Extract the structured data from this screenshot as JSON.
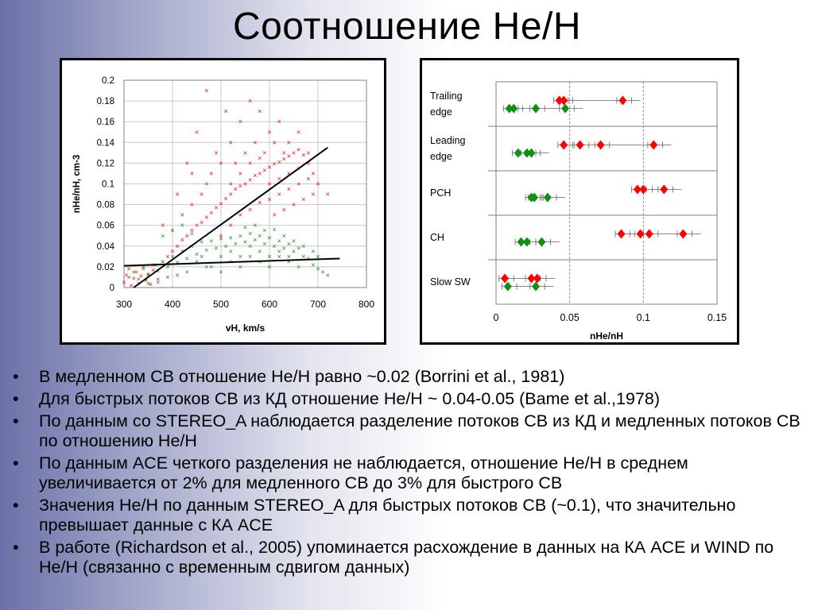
{
  "slide": {
    "title": "Соотношение He/H",
    "bullet_glyph": "•",
    "bullets": [
      "В медленном СВ отношение He/H равно ~0.02 (Borrini et al., 1981)",
      "Для быстрых потоков СВ из КД отношение He/H ~ 0.04-0.05 (Bame et al.,1978)",
      "По данным со STEREO_A  наблюдается разделение потоков СВ из КД  и медленных потоков СВ по отношению He/H",
      "По данным ACE четкого разделения не наблюдается, отношение He/H в среднем увеличивается от 2% для медленного СВ до 3% для быстрого СВ",
      "Значения He/H по данным STEREO_A для быстрых потоков СВ  (~0.1), что значительно превышает данные с КА ACE",
      "В работе (Richardson et al., 2005) упоминается расхождение в данных  на КА ACE  и WIND по He/H (связанно с временным сдвигом данных)"
    ]
  },
  "colors": {
    "red": "#ff0000",
    "green": "#109010",
    "line": "#000000"
  },
  "chart_data": [
    {
      "type": "scatter",
      "xlabel": "vH, km/s",
      "ylabel": "nHe/nH, cm-3",
      "xlim": [
        300,
        800
      ],
      "ylim": [
        0,
        0.2
      ],
      "xticks": [
        "300",
        "400",
        "500",
        "600",
        "700",
        "800"
      ],
      "yticks": [
        "0",
        "0.02",
        "0.04",
        "0.06",
        "0.08",
        "0.1",
        "0.12",
        "0.14",
        "0.16",
        "0.18",
        "0.2"
      ],
      "marker": "×",
      "series": [
        {
          "color": "red",
          "points": [
            [
              300,
              0.005
            ],
            [
              305,
              0.012
            ],
            [
              310,
              0.018
            ],
            [
              315,
              0.002
            ],
            [
              320,
              0.009
            ],
            [
              325,
              0.015
            ],
            [
              330,
              0.004
            ],
            [
              335,
              0.011
            ],
            [
              340,
              0.02
            ],
            [
              345,
              0.007
            ],
            [
              350,
              0.013
            ],
            [
              355,
              0.003
            ],
            [
              360,
              0.017
            ],
            [
              365,
              0.022
            ],
            [
              370,
              0.008
            ],
            [
              380,
              0.025
            ],
            [
              390,
              0.03
            ],
            [
              400,
              0.035
            ],
            [
              410,
              0.04
            ],
            [
              420,
              0.046
            ],
            [
              430,
              0.05
            ],
            [
              440,
              0.055
            ],
            [
              450,
              0.06
            ],
            [
              460,
              0.063
            ],
            [
              470,
              0.068
            ],
            [
              480,
              0.072
            ],
            [
              490,
              0.077
            ],
            [
              500,
              0.081
            ],
            [
              510,
              0.086
            ],
            [
              520,
              0.09
            ],
            [
              530,
              0.095
            ],
            [
              540,
              0.098
            ],
            [
              550,
              0.1
            ],
            [
              560,
              0.104
            ],
            [
              570,
              0.108
            ],
            [
              580,
              0.11
            ],
            [
              590,
              0.113
            ],
            [
              600,
              0.116
            ],
            [
              610,
              0.119
            ],
            [
              620,
              0.121
            ],
            [
              630,
              0.124
            ],
            [
              640,
              0.127
            ],
            [
              650,
              0.13
            ],
            [
              660,
              0.133
            ],
            [
              670,
              0.128
            ],
            [
              680,
              0.12
            ],
            [
              690,
              0.11
            ],
            [
              430,
              0.12
            ],
            [
              450,
              0.15
            ],
            [
              470,
              0.19
            ],
            [
              520,
              0.14
            ],
            [
              540,
              0.16
            ],
            [
              560,
              0.18
            ],
            [
              580,
              0.17
            ],
            [
              600,
              0.15
            ],
            [
              620,
              0.16
            ],
            [
              640,
              0.14
            ],
            [
              660,
              0.15
            ],
            [
              680,
              0.13
            ],
            [
              700,
              0.1
            ],
            [
              720,
              0.09
            ],
            [
              500,
              0.05
            ],
            [
              520,
              0.06
            ],
            [
              540,
              0.07
            ],
            [
              560,
              0.075
            ],
            [
              580,
              0.082
            ],
            [
              600,
              0.085
            ],
            [
              620,
              0.09
            ],
            [
              640,
              0.095
            ],
            [
              660,
              0.1
            ],
            [
              680,
              0.105
            ],
            [
              460,
              0.09
            ],
            [
              480,
              0.11
            ],
            [
              500,
              0.12
            ],
            [
              420,
              0.07
            ],
            [
              440,
              0.08
            ],
            [
              610,
              0.07
            ],
            [
              630,
              0.075
            ],
            [
              650,
              0.08
            ],
            [
              670,
              0.085
            ],
            [
              690,
              0.09
            ],
            [
              550,
              0.13
            ],
            [
              570,
              0.14
            ],
            [
              590,
              0.13
            ],
            [
              610,
              0.14
            ],
            [
              630,
              0.13
            ],
            [
              520,
              0.1
            ],
            [
              540,
              0.11
            ],
            [
              560,
              0.12
            ],
            [
              580,
              0.125
            ],
            [
              600,
              0.1
            ],
            [
              620,
              0.105
            ],
            [
              640,
              0.11
            ],
            [
              660,
              0.115
            ],
            [
              380,
              0.06
            ],
            [
              400,
              0.055
            ],
            [
              410,
              0.09
            ],
            [
              440,
              0.11
            ],
            [
              470,
              0.1
            ],
            [
              490,
              0.13
            ],
            [
              510,
              0.17
            ],
            [
              530,
              0.12
            ]
          ]
        },
        {
          "color": "green",
          "points": [
            [
              310,
              0.01
            ],
            [
              320,
              0.015
            ],
            [
              330,
              0.008
            ],
            [
              340,
              0.018
            ],
            [
              350,
              0.012
            ],
            [
              360,
              0.022
            ],
            [
              370,
              0.016
            ],
            [
              380,
              0.025
            ],
            [
              390,
              0.02
            ],
            [
              400,
              0.03
            ],
            [
              410,
              0.024
            ],
            [
              420,
              0.035
            ],
            [
              430,
              0.028
            ],
            [
              440,
              0.04
            ],
            [
              450,
              0.032
            ],
            [
              460,
              0.044
            ],
            [
              470,
              0.036
            ],
            [
              480,
              0.045
            ],
            [
              490,
              0.038
            ],
            [
              500,
              0.047
            ],
            [
              510,
              0.04
            ],
            [
              520,
              0.048
            ],
            [
              530,
              0.042
            ],
            [
              540,
              0.05
            ],
            [
              550,
              0.044
            ],
            [
              560,
              0.052
            ],
            [
              570,
              0.046
            ],
            [
              580,
              0.05
            ],
            [
              590,
              0.042
            ],
            [
              600,
              0.048
            ],
            [
              610,
              0.04
            ],
            [
              620,
              0.045
            ],
            [
              630,
              0.038
            ],
            [
              640,
              0.042
            ],
            [
              650,
              0.035
            ],
            [
              660,
              0.038
            ],
            [
              670,
              0.03
            ],
            [
              680,
              0.028
            ],
            [
              690,
              0.022
            ],
            [
              700,
              0.018
            ],
            [
              710,
              0.015
            ],
            [
              720,
              0.012
            ],
            [
              380,
              0.05
            ],
            [
              400,
              0.055
            ],
            [
              420,
              0.06
            ],
            [
              440,
              0.052
            ],
            [
              460,
              0.03
            ],
            [
              480,
              0.02
            ],
            [
              500,
              0.015
            ],
            [
              520,
              0.025
            ],
            [
              540,
              0.02
            ],
            [
              560,
              0.03
            ],
            [
              580,
              0.025
            ],
            [
              600,
              0.02
            ],
            [
              620,
              0.03
            ],
            [
              640,
              0.025
            ],
            [
              660,
              0.02
            ],
            [
              500,
              0.03
            ],
            [
              520,
              0.035
            ],
            [
              540,
              0.03
            ],
            [
              560,
              0.04
            ],
            [
              580,
              0.035
            ],
            [
              600,
              0.03
            ],
            [
              620,
              0.035
            ],
            [
              640,
              0.03
            ],
            [
              450,
              0.025
            ],
            [
              470,
              0.02
            ],
            [
              430,
              0.015
            ],
            [
              410,
              0.012
            ],
            [
              390,
              0.01
            ],
            [
              370,
              0.005
            ],
            [
              350,
              0.004
            ],
            [
              550,
              0.058
            ],
            [
              570,
              0.06
            ],
            [
              590,
              0.055
            ],
            [
              610,
              0.056
            ],
            [
              630,
              0.05
            ],
            [
              650,
              0.045
            ],
            [
              670,
              0.04
            ],
            [
              690,
              0.035
            ],
            [
              700,
              0.03
            ]
          ]
        }
      ],
      "fit_lines": [
        {
          "color": "line",
          "from": [
            320,
            0
          ],
          "to": [
            720,
            0.135
          ]
        },
        {
          "color": "line",
          "from": [
            300,
            0.021
          ],
          "to": [
            745,
            0.028
          ]
        }
      ]
    },
    {
      "type": "scatter",
      "xlabel": "nHe/nH",
      "xlim": [
        0,
        0.15
      ],
      "xticks": [
        "0",
        "0.05",
        "0.1",
        "0.15"
      ],
      "categories": [
        "Trailing\nedge",
        "Leading\nedge",
        "PCH",
        "CH",
        "Slow SW"
      ],
      "marker": "◆",
      "series": [
        {
          "color": "red",
          "points": [
            [
              "Trailing\nedge",
              0.043
            ],
            [
              "Trailing\nedge",
              0.046
            ],
            [
              "Trailing\nedge",
              0.086
            ],
            [
              "Leading\nedge",
              0.046
            ],
            [
              "Leading\nedge",
              0.057
            ],
            [
              "Leading\nedge",
              0.071
            ],
            [
              "Leading\nedge",
              0.107
            ],
            [
              "PCH",
              0.096
            ],
            [
              "PCH",
              0.1
            ],
            [
              "PCH",
              0.114
            ],
            [
              "CH",
              0.085
            ],
            [
              "CH",
              0.098
            ],
            [
              "CH",
              0.104
            ],
            [
              "CH",
              0.127
            ],
            [
              "Slow SW",
              0.006
            ],
            [
              "Slow SW",
              0.024
            ],
            [
              "Slow SW",
              0.028
            ]
          ]
        },
        {
          "color": "green",
          "points": [
            [
              "Trailing\nedge",
              0.009
            ],
            [
              "Trailing\nedge",
              0.012
            ],
            [
              "Trailing\nedge",
              0.027
            ],
            [
              "Trailing\nedge",
              0.047
            ],
            [
              "Leading\nedge",
              0.015
            ],
            [
              "Leading\nedge",
              0.021
            ],
            [
              "Leading\nedge",
              0.024
            ],
            [
              "PCH",
              0.024
            ],
            [
              "PCH",
              0.026
            ],
            [
              "PCH",
              0.035
            ],
            [
              "CH",
              0.017
            ],
            [
              "CH",
              0.021
            ],
            [
              "CH",
              0.031
            ],
            [
              "Slow SW",
              0.008
            ],
            [
              "Slow SW",
              0.027
            ]
          ]
        }
      ]
    }
  ]
}
